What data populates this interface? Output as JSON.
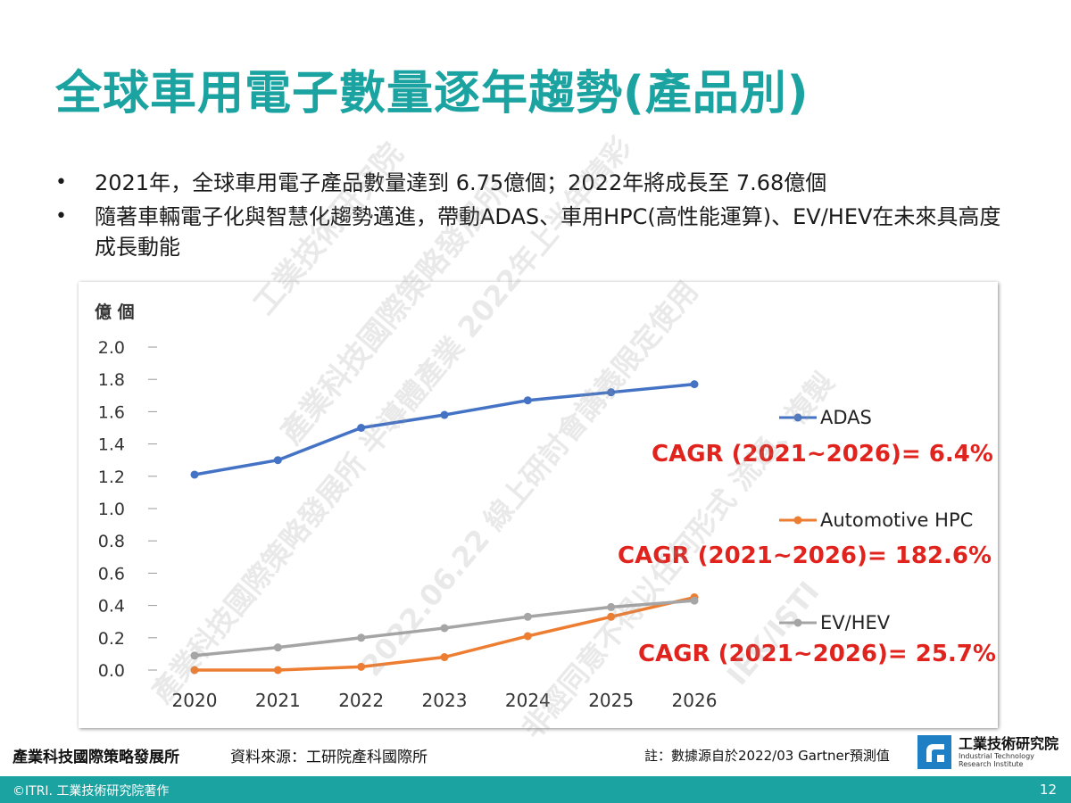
{
  "slide": {
    "title": "全球車用電子數量逐年趨勢(產品別)",
    "bullets": [
      "2021年，全球車用電子產品數量達到 6.75億個；2022年將成長至 7.68億個",
      "隨著車輛電子化與智慧化趨勢邁進，帶動ADAS、車用HPC(高性能運算)、EV/HEV在未來具高度成長動能"
    ],
    "bullet_symbol": "•"
  },
  "chart_data": {
    "type": "line",
    "ylabel": "億 個",
    "x": [
      "2020",
      "2021",
      "2022",
      "2023",
      "2024",
      "2025",
      "2026"
    ],
    "ylim": [
      0,
      2.0
    ],
    "yticks": [
      "0.0",
      "0.2",
      "0.4",
      "0.6",
      "0.8",
      "1.0",
      "1.2",
      "1.4",
      "1.6",
      "1.8",
      "2.0"
    ],
    "grid": false,
    "legend_position": "right",
    "series": [
      {
        "name": "ADAS",
        "color": "#4472c4",
        "values": [
          1.21,
          1.3,
          1.5,
          1.58,
          1.67,
          1.72,
          1.77
        ],
        "cagr": "CAGR (2021~2026)= 6.4%"
      },
      {
        "name": "Automotive HPC",
        "color": "#ed7d31",
        "values": [
          0.0,
          0.0,
          0.02,
          0.08,
          0.21,
          0.33,
          0.45
        ],
        "cagr": "CAGR (2021~2026)= 182.6%"
      },
      {
        "name": "EV/HEV",
        "color": "#a5a5a5",
        "values": [
          0.09,
          0.14,
          0.2,
          0.26,
          0.33,
          0.39,
          0.43
        ],
        "cagr": "CAGR (2021~2026)= 25.7%"
      }
    ]
  },
  "footer": {
    "org": "產業科技國際策略發展所",
    "source": "資料來源：工研院產科國際所",
    "note": "註：數據源自於2022/03 Gartner預測值",
    "logo_cn": "工業技術研究院",
    "logo_en_1": "Industrial Technology",
    "logo_en_2": "Research Institute",
    "copyright": "©ITRI. 工業技術研究院著作",
    "page": "12"
  },
  "watermark": {
    "lines": [
      "工業技術研究院",
      "產業科技國際策略發展所",
      "產業科技國際策略發展所 半導體產業 2022年上半年精彩",
      "2022.06.22 線上研討會講義限定使用",
      "非經同意不得以任何形式 流通、複製",
      "IEK/ISTI"
    ],
    "color": "#9a9a9a"
  },
  "colors": {
    "accent": "#1aa3a0",
    "cagr": "#e0231d"
  }
}
